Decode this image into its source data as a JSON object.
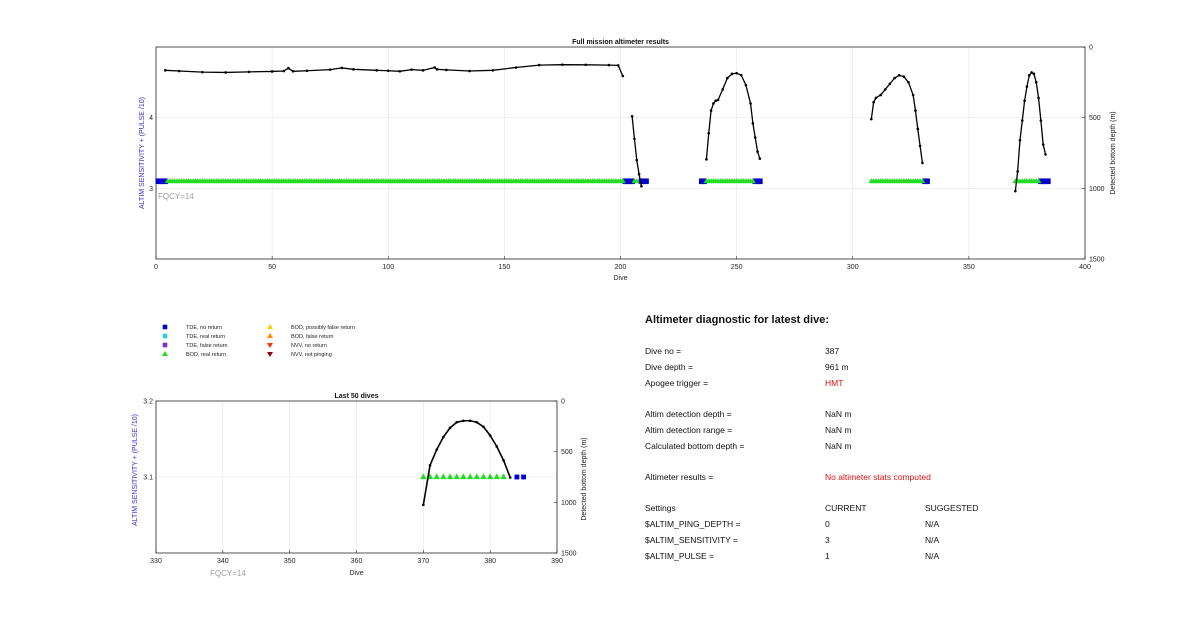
{
  "colors": {
    "tde_no_return": "#0000cc",
    "tde_real_return": "#33cccc",
    "tde_false_return": "#7733cc",
    "bod_real_return": "#22dd22",
    "bod_possibly_false": "#ffcc00",
    "bod_false_return": "#ff8800",
    "nvv_no_return": "#ff3300",
    "nvv_not_pinging": "#880000",
    "left_axis_label": "#3333cc",
    "highlight_red": "#dd1111"
  },
  "legend": [
    {
      "label": "TDE, no return",
      "marker": "square",
      "color": "#0000cc"
    },
    {
      "label": "TDE, real return",
      "marker": "square",
      "color": "#33cccc"
    },
    {
      "label": "TDE, false return",
      "marker": "square",
      "color": "#7733cc"
    },
    {
      "label": "BOD, real return",
      "marker": "triangle-up",
      "color": "#22dd22"
    },
    {
      "label": "BOD, possibly false return",
      "marker": "triangle-up",
      "color": "#ffcc00"
    },
    {
      "label": "BOD, false return",
      "marker": "triangle-up",
      "color": "#ff8800"
    },
    {
      "label": "NVV, no return",
      "marker": "triangle-down",
      "color": "#ff3300"
    },
    {
      "label": "NVV, not pinging",
      "marker": "triangle-down",
      "color": "#880000"
    }
  ],
  "chart_data": [
    {
      "type": "scatter",
      "title": "Full mission altimeter results",
      "xlabel": "Dive",
      "ylabel": "ALTIM SENSITIVITY + (PULSE /10)",
      "ylabel_right": "Detected bottom depth (m)",
      "annotation": "FQCY=14",
      "xlim": [
        0,
        400
      ],
      "xticks": [
        0,
        50,
        100,
        150,
        200,
        250,
        300,
        350,
        400
      ],
      "ylim_left": [
        2,
        5
      ],
      "yticks_left": [
        3,
        4
      ],
      "ylim_right": [
        0,
        1500
      ],
      "right_axis_inverted": true,
      "yticks_right": [
        0,
        500,
        1000,
        1500
      ],
      "grid": true,
      "series": [
        {
          "name": "TDE, no return",
          "marker": "square",
          "color": "#0000cc",
          "x": [
            1,
            2,
            3,
            4,
            202,
            203,
            204,
            205,
            209,
            210,
            211,
            235,
            236,
            258,
            259,
            260,
            331,
            332,
            381,
            382,
            383,
            384
          ],
          "y": [
            3.1,
            3.1,
            3.1,
            3.1,
            3.1,
            3.1,
            3.1,
            3.1,
            3.1,
            3.1,
            3.1,
            3.1,
            3.1,
            3.1,
            3.1,
            3.1,
            3.1,
            3.1,
            3.1,
            3.1,
            3.1,
            3.1
          ]
        },
        {
          "name": "BOD, real return",
          "marker": "triangle-up",
          "color": "#22dd22",
          "x_range": [
            5,
            201
          ],
          "y": 3.1,
          "extra_x": [
            206,
            207,
            237,
            238,
            239,
            240,
            241,
            242,
            243,
            244,
            245,
            246,
            247,
            248,
            249,
            250,
            251,
            252,
            253,
            254,
            255,
            256,
            257,
            308,
            309,
            310,
            311,
            312,
            313,
            314,
            315,
            316,
            317,
            318,
            319,
            320,
            321,
            322,
            323,
            324,
            325,
            326,
            327,
            328,
            329,
            330,
            370,
            371,
            372,
            373,
            374,
            375,
            376,
            377,
            378,
            379,
            380
          ]
        },
        {
          "name": "Detected bottom depth",
          "marker": "dot",
          "color": "#000000",
          "axis": "right",
          "segments": [
            {
              "x": [
                4,
                10,
                20,
                30,
                40,
                50,
                55,
                57,
                59,
                65,
                75,
                80,
                85,
                95,
                100,
                105,
                110,
                115,
                120,
                121,
                125,
                135,
                145,
                155,
                165,
                175,
                185,
                195,
                199,
                201
              ],
              "y": [
                165,
                170,
                178,
                180,
                176,
                173,
                170,
                150,
                172,
                168,
                160,
                148,
                158,
                165,
                168,
                172,
                160,
                165,
                145,
                158,
                162,
                170,
                165,
                145,
                128,
                125,
                126,
                128,
                130,
                205
              ]
            },
            {
              "x": [
                205,
                206,
                207,
                208,
                209
              ],
              "y": [
                490,
                650,
                800,
                900,
                985
              ]
            },
            {
              "x": [
                237,
                238,
                239,
                240,
                241,
                242,
                244,
                246,
                248,
                250,
                252,
                254,
                256,
                257,
                258,
                259,
                260
              ],
              "y": [
                795,
                610,
                450,
                400,
                380,
                375,
                300,
                220,
                190,
                185,
                200,
                270,
                400,
                540,
                640,
                740,
                790
              ]
            },
            {
              "x": [
                308,
                309,
                310,
                312,
                314,
                316,
                318,
                320,
                322,
                324,
                326,
                327,
                328,
                329,
                330
              ],
              "y": [
                510,
                390,
                360,
                340,
                300,
                260,
                220,
                200,
                210,
                250,
                340,
                450,
                580,
                700,
                820
              ]
            },
            {
              "x": [
                370,
                371,
                372,
                373,
                374,
                375,
                376,
                377,
                378,
                379,
                380,
                381,
                382,
                383
              ],
              "y": [
                1020,
                880,
                660,
                520,
                380,
                280,
                200,
                180,
                190,
                250,
                360,
                520,
                690,
                760
              ]
            }
          ]
        }
      ]
    },
    {
      "type": "scatter",
      "title": "Last 50 dives",
      "xlabel": "Dive",
      "ylabel": "ALTIM SENSITIVITY + (PULSE /10)",
      "ylabel_right": "Detected bottom depth (m)",
      "annotation": "FQCY=14",
      "xlim": [
        330,
        390
      ],
      "xticks": [
        330,
        340,
        350,
        360,
        370,
        380,
        390
      ],
      "ylim_left": [
        3.0,
        3.2
      ],
      "yticks_left": [
        3.1,
        3.2
      ],
      "ylim_right": [
        0,
        1500
      ],
      "right_axis_inverted": true,
      "yticks_right": [
        0,
        500,
        1000,
        1500
      ],
      "grid": true,
      "series": [
        {
          "name": "TDE, no return",
          "marker": "square",
          "color": "#0000cc",
          "x": [
            384,
            385
          ],
          "y": [
            3.1,
            3.1
          ]
        },
        {
          "name": "BOD, real return",
          "marker": "triangle-up",
          "color": "#22dd22",
          "x": [
            370,
            371,
            372,
            373,
            374,
            375,
            376,
            377,
            378,
            379,
            380,
            381,
            382
          ],
          "y": 3.1
        },
        {
          "name": "Detected bottom depth",
          "marker": "dot",
          "color": "#000000",
          "axis": "right",
          "segments": [
            {
              "x": [
                370,
                371,
                372,
                373,
                374,
                375,
                376,
                377,
                378,
                379,
                380,
                381,
                382,
                383
              ],
              "y": [
                1025,
                635,
                480,
                355,
                265,
                210,
                195,
                195,
                210,
                255,
                340,
                450,
                585,
                755
              ]
            }
          ]
        }
      ]
    }
  ],
  "diagnostic": {
    "title": "Altimeter diagnostic for latest dive:",
    "dive_no_label": "Dive no =",
    "dive_no_value": "387",
    "dive_depth_label": "Dive depth =",
    "dive_depth_value": "961 m",
    "apogee_label": "Apogee trigger =",
    "apogee_value": "HMT",
    "altim_det_depth_label": "Altim detection depth =",
    "altim_det_depth_value": "NaN m",
    "altim_det_range_label": "Altim detection range =",
    "altim_det_range_value": "NaN m",
    "calc_bottom_label": "Calculated bottom depth =",
    "calc_bottom_value": "NaN m",
    "results_label": "Altimeter results =",
    "results_value": "No altimeter stats computed",
    "settings_header": "Settings",
    "current_header": "CURRENT",
    "suggested_header": "SUGGESTED",
    "settings": [
      {
        "name": "$ALTIM_PING_DEPTH =",
        "current": "0",
        "suggested": "N/A"
      },
      {
        "name": "$ALTIM_SENSITIVITY =",
        "current": "3",
        "suggested": "N/A"
      },
      {
        "name": "$ALTIM_PULSE =",
        "current": "1",
        "suggested": "N/A"
      }
    ]
  }
}
